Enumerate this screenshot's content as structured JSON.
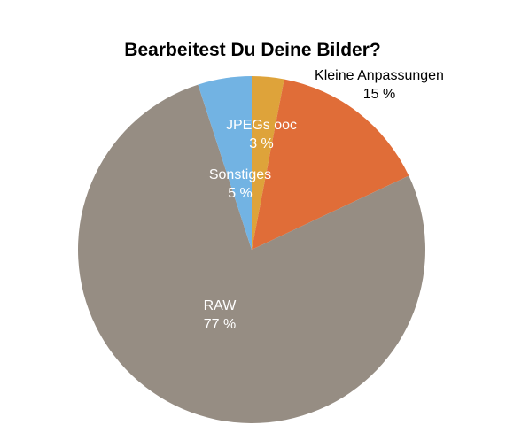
{
  "chart_data": {
    "type": "pie",
    "title": "Bearbeitest Du Deine Bilder?",
    "start_angle_deg": 0,
    "direction": "clockwise",
    "slices": [
      {
        "label": "JPEGs ooc",
        "value": 3,
        "value_label": "3 %",
        "color": "#dea33a",
        "label_color": "#ffffff"
      },
      {
        "label": "Kleine Anpassungen",
        "value": 15,
        "value_label": "15 %",
        "color": "#e06d38",
        "label_color": "#000000"
      },
      {
        "label": "RAW",
        "value": 77,
        "value_label": "77 %",
        "color": "#968d83",
        "label_color": "#ffffff"
      },
      {
        "label": "Sonstiges",
        "value": 5,
        "value_label": "5 %",
        "color": "#72b3e3",
        "label_color": "#ffffff"
      }
    ]
  }
}
